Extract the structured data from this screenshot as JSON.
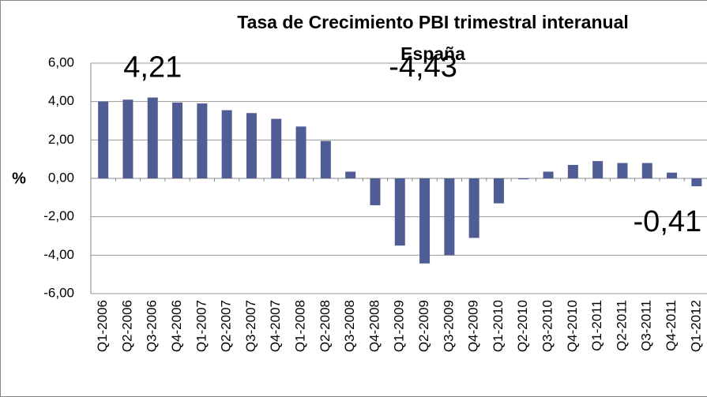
{
  "chart_data": {
    "type": "bar",
    "title": [
      "Tasa de Crecimiento PBI trimestral interanual",
      "España"
    ],
    "y_label": "%",
    "categories": [
      "Q1-2006",
      "Q2-2006",
      "Q3-2006",
      "Q4-2006",
      "Q1-2007",
      "Q2-2007",
      "Q3-2007",
      "Q4-2007",
      "Q1-2008",
      "Q2-2008",
      "Q3-2008",
      "Q4-2008",
      "Q1-2009",
      "Q2-2009",
      "Q3-2009",
      "Q4-2009",
      "Q1-2010",
      "Q2-2010",
      "Q3-2010",
      "Q4-2010",
      "Q1-2011",
      "Q2-2011",
      "Q3-2011",
      "Q4-2011",
      "Q1-2012"
    ],
    "values": [
      4.0,
      4.1,
      4.21,
      3.95,
      3.9,
      3.55,
      3.4,
      3.1,
      2.7,
      1.95,
      0.35,
      -1.4,
      -3.5,
      -4.43,
      -4.0,
      -3.1,
      -1.3,
      -0.05,
      0.35,
      0.7,
      0.9,
      0.8,
      0.8,
      0.3,
      -0.41
    ],
    "value_labels": [
      null,
      null,
      "4,21",
      null,
      null,
      null,
      null,
      null,
      null,
      null,
      null,
      null,
      null,
      "-4,43",
      null,
      null,
      null,
      null,
      null,
      null,
      null,
      null,
      null,
      null,
      "-0,41"
    ],
    "color": "#4f5d94",
    "ylim": [
      -6,
      6
    ],
    "yticks": [
      {
        "value": -6,
        "label": "-6,00"
      },
      {
        "value": -4,
        "label": "-4,00"
      },
      {
        "value": -2,
        "label": "-2,00"
      },
      {
        "value": 0,
        "label": "0,00"
      },
      {
        "value": 2,
        "label": "2,00"
      },
      {
        "value": 4,
        "label": "4,00"
      },
      {
        "value": 6,
        "label": "6,00"
      }
    ],
    "grid": true
  }
}
